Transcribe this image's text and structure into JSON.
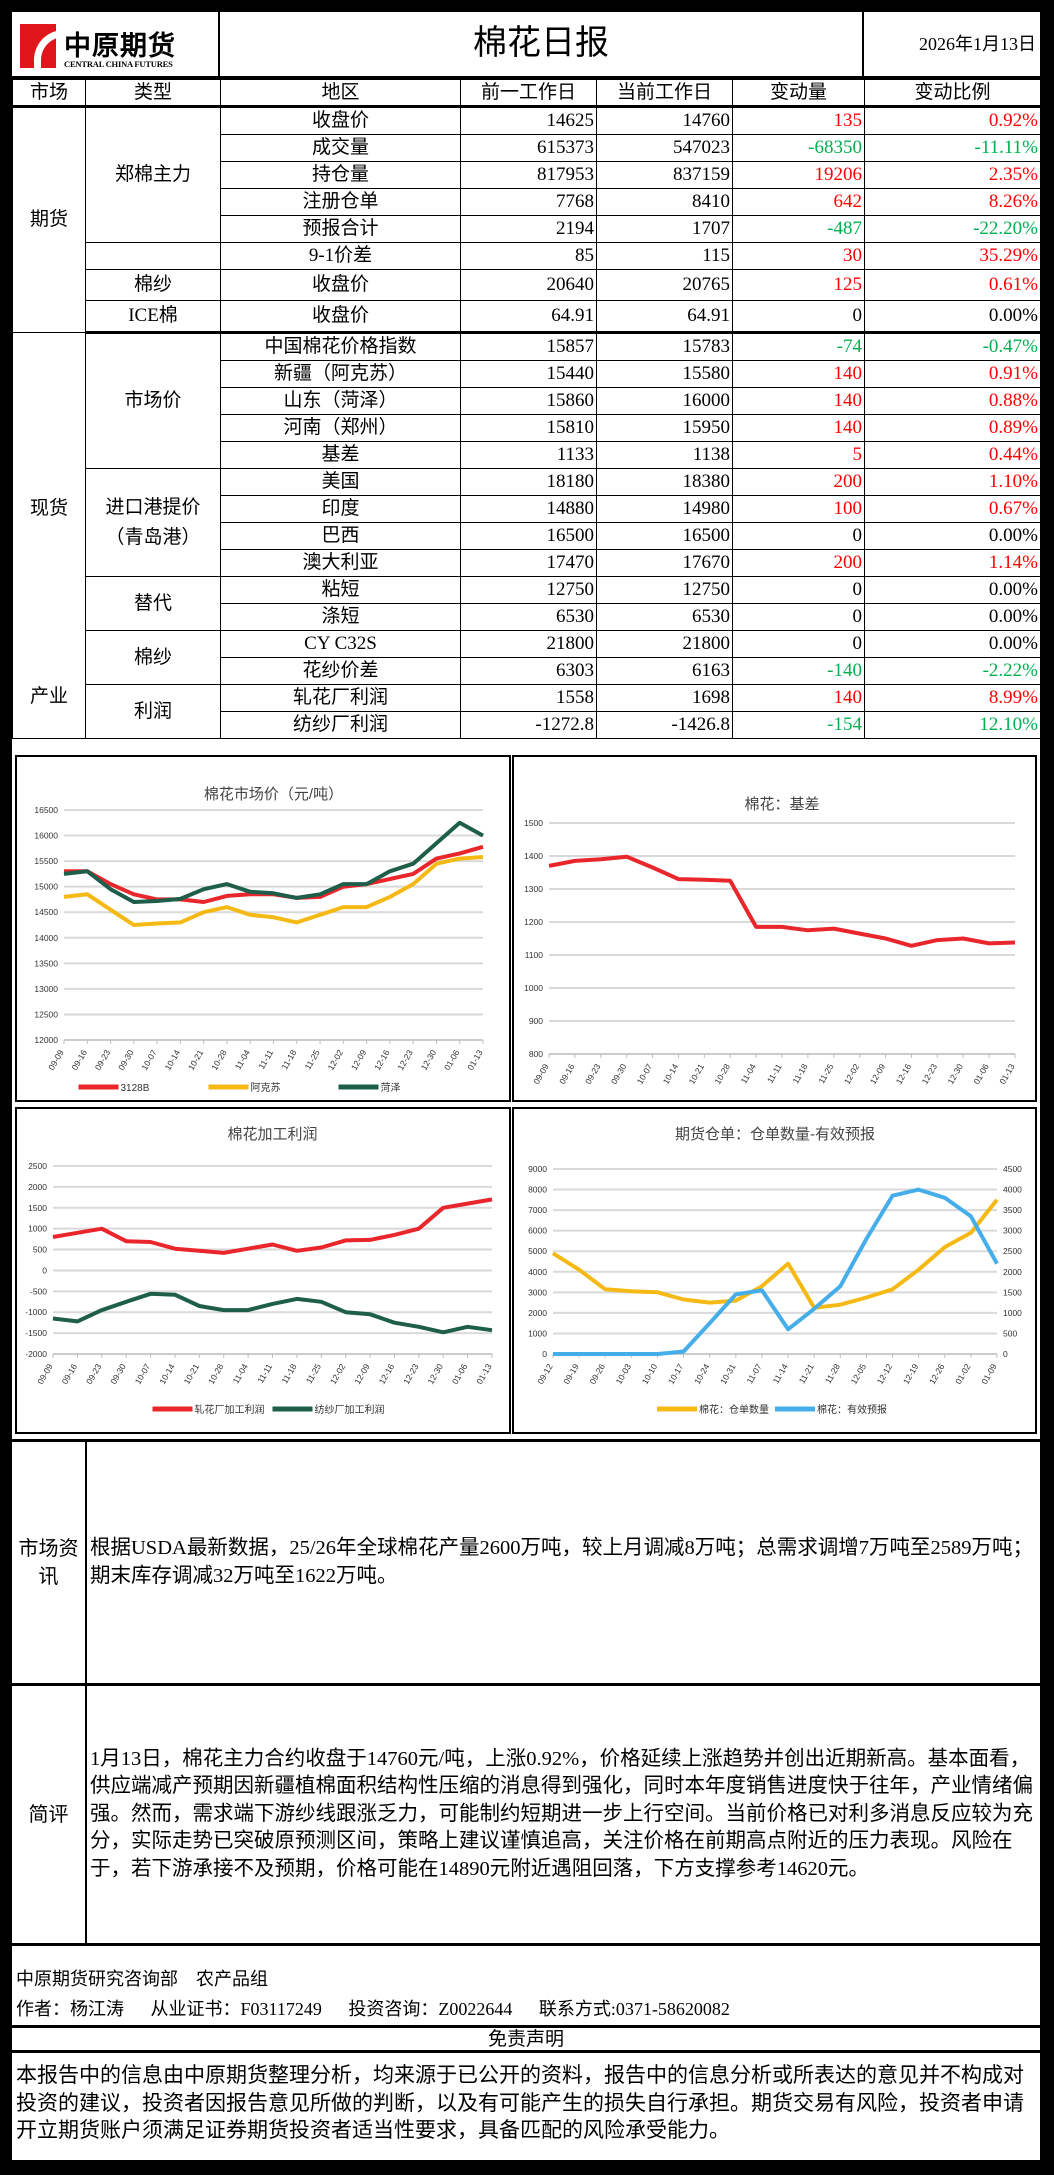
{
  "header": {
    "logo_cn": "中原期货",
    "logo_en": "CENTRAL CHINA FUTURES",
    "title": "棉花日报",
    "date": "2026年1月13日"
  },
  "table": {
    "columns": [
      "市场",
      "类型",
      "地区",
      "前一工作日",
      "当前工作日",
      "变动量",
      "变动比例"
    ],
    "markets": [
      {
        "market": "期货",
        "groups": [
          {
            "type": "郑棉主力",
            "rows": [
              {
                "item": "收盘价",
                "prev": "14625",
                "curr": "14760",
                "chg": "135",
                "pct": "0.92%"
              },
              {
                "item": "成交量",
                "prev": "615373",
                "curr": "547023",
                "chg": "-68350",
                "pct": "-11.11%"
              },
              {
                "item": "持仓量",
                "prev": "817953",
                "curr": "837159",
                "chg": "19206",
                "pct": "2.35%"
              },
              {
                "item": "注册仓单",
                "prev": "7768",
                "curr": "8410",
                "chg": "642",
                "pct": "8.26%"
              },
              {
                "item": "预报合计",
                "prev": "2194",
                "curr": "1707",
                "chg": "-487",
                "pct": "-22.20%"
              }
            ]
          },
          {
            "type": "",
            "rows": [
              {
                "item": "9-1价差",
                "prev": "85",
                "curr": "115",
                "chg": "30",
                "pct": "35.29%"
              }
            ]
          },
          {
            "type": "棉纱",
            "rows": [
              {
                "item": "收盘价",
                "prev": "20640",
                "curr": "20765",
                "chg": "125",
                "pct": "0.61%"
              }
            ]
          },
          {
            "type": "ICE棉",
            "rows": [
              {
                "item": "收盘价",
                "prev": "64.91",
                "curr": "64.91",
                "chg": "0",
                "pct": "0.00%"
              }
            ]
          }
        ]
      },
      {
        "market": "现货",
        "groups": [
          {
            "type": "市场价",
            "rows": [
              {
                "item": "中国棉花价格指数",
                "prev": "15857",
                "curr": "15783",
                "chg": "-74",
                "pct": "-0.47%"
              },
              {
                "item": "新疆（阿克苏）",
                "prev": "15440",
                "curr": "15580",
                "chg": "140",
                "pct": "0.91%"
              },
              {
                "item": "山东（菏泽）",
                "prev": "15860",
                "curr": "16000",
                "chg": "140",
                "pct": "0.88%"
              },
              {
                "item": "河南（郑州）",
                "prev": "15810",
                "curr": "15950",
                "chg": "140",
                "pct": "0.89%"
              },
              {
                "item": "基差",
                "prev": "1133",
                "curr": "1138",
                "chg": "5",
                "pct": "0.44%"
              }
            ]
          },
          {
            "type": "进口港提价\n（青岛港）",
            "rows": [
              {
                "item": "美国",
                "prev": "18180",
                "curr": "18380",
                "chg": "200",
                "pct": "1.10%"
              },
              {
                "item": "印度",
                "prev": "14880",
                "curr": "14980",
                "chg": "100",
                "pct": "0.67%"
              },
              {
                "item": "巴西",
                "prev": "16500",
                "curr": "16500",
                "chg": "0",
                "pct": "0.00%"
              },
              {
                "item": "澳大利亚",
                "prev": "17470",
                "curr": "17670",
                "chg": "200",
                "pct": "1.14%"
              }
            ]
          },
          {
            "type": "替代",
            "rows": [
              {
                "item": "粘短",
                "prev": "12750",
                "curr": "12750",
                "chg": "0",
                "pct": "0.00%"
              },
              {
                "item": "涤短",
                "prev": "6530",
                "curr": "6530",
                "chg": "0",
                "pct": "0.00%"
              }
            ]
          },
          {
            "type": "棉纱",
            "rows": [
              {
                "item": "CY C32S",
                "prev": "21800",
                "curr": "21800",
                "chg": "0",
                "pct": "0.00%"
              },
              {
                "item": "花纱价差",
                "prev": "6303",
                "curr": "6163",
                "chg": "-140",
                "pct": "-2.22%"
              }
            ]
          }
        ]
      },
      {
        "market": "产业",
        "groups": [
          {
            "type": "利润",
            "rows": [
              {
                "item": "轧花厂利润",
                "prev": "1558",
                "curr": "1698",
                "chg": "140",
                "pct": "8.99%"
              },
              {
                "item": "纺纱厂利润",
                "prev": "-1272.8",
                "curr": "-1426.8",
                "chg": "-154",
                "pct": "12.10%"
              }
            ]
          }
        ]
      }
    ],
    "colors": {
      "up": "#ff0000",
      "down": "#00b050",
      "flat": "#000000"
    }
  },
  "chart_data": [
    {
      "type": "line",
      "title": "棉花市场价（元/吨）",
      "ylim": [
        12000,
        16500
      ],
      "ystep": 500,
      "x": [
        "09-09",
        "09-16",
        "09-23",
        "09-30",
        "10-07",
        "10-14",
        "10-21",
        "10-28",
        "11-04",
        "11-11",
        "11-18",
        "11-25",
        "12-02",
        "12-09",
        "12-16",
        "12-23",
        "12-30",
        "01-06",
        "01-13"
      ],
      "series": [
        {
          "name": "3128B",
          "color": "#e8262b",
          "values": [
            15300,
            15300,
            15050,
            14850,
            14750,
            14750,
            14700,
            14820,
            14850,
            14850,
            14780,
            14800,
            15000,
            15050,
            15150,
            15250,
            15550,
            15650,
            15780
          ]
        },
        {
          "name": "阿克苏",
          "color": "#f5b915",
          "values": [
            14800,
            14850,
            14550,
            14250,
            14280,
            14300,
            14500,
            14600,
            14450,
            14400,
            14300,
            14450,
            14600,
            14600,
            14800,
            15050,
            15450,
            15550,
            15580
          ]
        },
        {
          "name": "菏泽",
          "color": "#1e5e4a",
          "values": [
            15250,
            15300,
            14950,
            14700,
            14720,
            14760,
            14950,
            15050,
            14900,
            14870,
            14780,
            14850,
            15050,
            15050,
            15300,
            15450,
            15850,
            16250,
            16000
          ]
        }
      ],
      "legend": "bottom"
    },
    {
      "type": "line",
      "title": "棉花：基差",
      "ylim": [
        800,
        1500
      ],
      "ystep": 100,
      "x": [
        "09-09",
        "09-16",
        "09-23",
        "09-30",
        "10-07",
        "10-14",
        "10-21",
        "10-28",
        "11-04",
        "11-11",
        "11-18",
        "11-25",
        "12-02",
        "12-09",
        "12-16",
        "12-23",
        "12-30",
        "01-06",
        "01-13"
      ],
      "series": [
        {
          "name": "基差",
          "color": "#e8262b",
          "values": [
            1370,
            1385,
            1390,
            1398,
            1365,
            1330,
            1328,
            1325,
            1185,
            1185,
            1175,
            1180,
            1165,
            1150,
            1128,
            1145,
            1150,
            1135,
            1138
          ]
        }
      ],
      "legend": "none"
    },
    {
      "type": "line",
      "title": "棉花加工利润",
      "ylim": [
        -2000,
        2500
      ],
      "ystep": 500,
      "x": [
        "09-09",
        "09-16",
        "09-23",
        "09-30",
        "10-07",
        "10-14",
        "10-21",
        "10-28",
        "11-04",
        "11-11",
        "11-18",
        "11-25",
        "12-02",
        "12-09",
        "12-16",
        "12-23",
        "12-30",
        "01-06",
        "01-13"
      ],
      "series": [
        {
          "name": "轧花厂加工利润",
          "color": "#e8262b",
          "values": [
            800,
            900,
            1000,
            700,
            680,
            520,
            470,
            420,
            520,
            620,
            470,
            550,
            720,
            730,
            850,
            1000,
            1500,
            1600,
            1700
          ]
        },
        {
          "name": "纺纱厂加工利润",
          "color": "#1e5e4a",
          "values": [
            -1150,
            -1220,
            -950,
            -750,
            -560,
            -580,
            -850,
            -950,
            -950,
            -800,
            -680,
            -750,
            -1000,
            -1050,
            -1250,
            -1350,
            -1480,
            -1350,
            -1430
          ]
        }
      ],
      "legend": "bottom"
    },
    {
      "type": "line",
      "title": "期货仓单：仓单数量-有效预报",
      "ylim": [
        0,
        9000
      ],
      "ystep": 1000,
      "y2lim": [
        0,
        4500
      ],
      "y2step": 500,
      "x": [
        "09-12",
        "09-19",
        "09-26",
        "10-03",
        "10-10",
        "10-17",
        "10-24",
        "10-31",
        "11-07",
        "11-14",
        "11-21",
        "11-28",
        "12-05",
        "12-12",
        "12-19",
        "12-26",
        "01-02",
        "01-09"
      ],
      "series": [
        {
          "name": "棉花：仓单数量",
          "color": "#f5b915",
          "axis": "left",
          "values": [
            4900,
            4100,
            3150,
            3050,
            3000,
            2650,
            2500,
            2600,
            3300,
            4400,
            2250,
            2400,
            2750,
            3150,
            4100,
            5200,
            5900,
            7500
          ]
        },
        {
          "name": "棉花：有效预报",
          "color": "#45aee8",
          "axis": "right",
          "values": [
            0,
            0,
            0,
            0,
            0,
            60,
            750,
            1450,
            1550,
            600,
            1100,
            1650,
            2800,
            3850,
            4000,
            3800,
            3350,
            2200
          ]
        }
      ],
      "legend": "bottom"
    }
  ],
  "news": {
    "label": "市场资讯",
    "text": "根据USDA最新数据，25/26年全球棉花产量2600万吨，较上月调减8万吨；总需求调增7万吨至2589万吨；期末库存调减32万吨至1622万吨。"
  },
  "comment": {
    "label": "简评",
    "text": "1月13日，棉花主力合约收盘于14760元/吨，上涨0.92%，价格延续上涨趋势并创出近期新高。基本面看，供应端减产预期因新疆植棉面积结构性压缩的消息得到强化，同时本年度销售进度快于往年，产业情绪偏强。然而，需求端下游纱线跟涨乏力，可能制约短期进一步上行空间。当前价格已对利多消息反应较为充分，实际走势已突破原预测区间，策略上建议谨慎追高，关注价格在前期高点附近的压力表现。风险在于，若下游承接不及预期，价格可能在14890元附近遇阻回落，下方支撑参考14620元。"
  },
  "footer": {
    "dept": "中原期货研究咨询部　农产品组",
    "author": "作者：杨江涛",
    "license": "从业证书：F03117249",
    "advisory": "投资咨询：Z0022644",
    "contact": "联系方式:0371-58620082"
  },
  "disclaimer": {
    "title": "免责声明",
    "text": "本报告中的信息由中原期货整理分析，均来源于已公开的资料，报告中的信息分析或所表达的意见并不构成对投资的建议，投资者因报告意见所做的判断，以及有可能产生的损失自行承担。期货交易有风险，投资者申请开立期货账户须满足证券期货投资者适当性要求，具备匹配的风险承受能力。"
  }
}
